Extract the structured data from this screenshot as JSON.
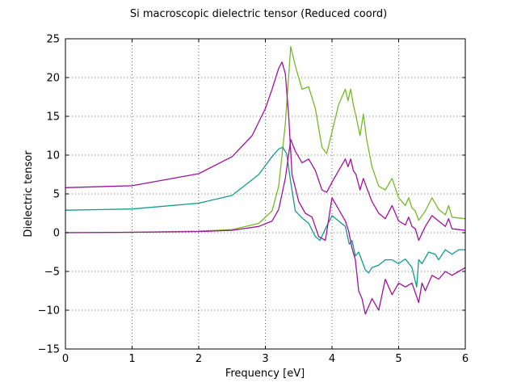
{
  "chart_data": {
    "type": "line",
    "title": "Si macroscopic dielectric tensor (Reduced coord)",
    "xlabel": "Frequency [eV]",
    "ylabel": "Dielectric tensor",
    "xlim": [
      0,
      6
    ],
    "ylim": [
      -15,
      25
    ],
    "xticks": [
      0,
      1,
      2,
      3,
      4,
      5,
      6
    ],
    "yticks": [
      -15,
      -10,
      -5,
      0,
      5,
      10,
      15,
      20,
      25
    ],
    "xtick_labels": [
      "0",
      "1",
      "2",
      "3",
      "4",
      "5",
      "6"
    ],
    "ytick_labels": [
      "−15",
      "−10",
      "−5",
      "0",
      "5",
      "10",
      "15",
      "20",
      "25"
    ],
    "grid": true,
    "legend": false,
    "series": [
      {
        "color": "#77b82a",
        "x": [
          0,
          1.0,
          2.0,
          2.5,
          2.9,
          3.1,
          3.2,
          3.3,
          3.38,
          3.45,
          3.55,
          3.65,
          3.75,
          3.85,
          3.92,
          4.0,
          4.1,
          4.2,
          4.24,
          4.28,
          4.32,
          4.36,
          4.42,
          4.47,
          4.52,
          4.6,
          4.7,
          4.8,
          4.9,
          5.0,
          5.1,
          5.15,
          5.2,
          5.25,
          5.3,
          5.4,
          5.5,
          5.6,
          5.7,
          5.75,
          5.8,
          5.9,
          6.0
        ],
        "y": [
          0,
          0.05,
          0.2,
          0.4,
          1.2,
          2.8,
          6.0,
          14.0,
          24.0,
          21.5,
          18.5,
          18.8,
          16.0,
          11.0,
          10.2,
          13.0,
          16.5,
          18.5,
          17.0,
          18.5,
          16.5,
          15.0,
          12.5,
          15.3,
          12.0,
          8.5,
          6.0,
          5.5,
          7.0,
          4.5,
          3.5,
          4.5,
          3.2,
          2.8,
          1.6,
          2.8,
          4.5,
          3.0,
          2.3,
          3.5,
          2.0,
          1.9,
          1.8
        ]
      },
      {
        "color": "#129b8d",
        "x": [
          0,
          1.0,
          2.0,
          2.5,
          2.9,
          3.1,
          3.2,
          3.26,
          3.32,
          3.38,
          3.45,
          3.55,
          3.65,
          3.75,
          3.82,
          3.9,
          4.0,
          4.1,
          4.2,
          4.26,
          4.3,
          4.35,
          4.4,
          4.5,
          4.55,
          4.6,
          4.7,
          4.8,
          4.9,
          5.0,
          5.1,
          5.2,
          5.27,
          5.3,
          5.35,
          5.45,
          5.55,
          5.6,
          5.7,
          5.8,
          5.9,
          6.0
        ],
        "y": [
          2.9,
          3.05,
          3.8,
          4.8,
          7.5,
          9.8,
          10.8,
          11.0,
          10.2,
          6.5,
          2.8,
          1.9,
          1.2,
          -0.5,
          -1.0,
          0.5,
          2.2,
          1.5,
          0.8,
          -1.5,
          -1.0,
          -3.0,
          -2.5,
          -4.8,
          -5.2,
          -4.5,
          -4.2,
          -3.5,
          -3.5,
          -4.0,
          -3.4,
          -4.5,
          -7.0,
          -3.5,
          -4.0,
          -2.5,
          -2.8,
          -3.5,
          -2.2,
          -2.8,
          -2.2,
          -2.2
        ]
      },
      {
        "color": "#a0119b",
        "x": [
          0,
          1.0,
          2.0,
          2.5,
          2.8,
          3.0,
          3.1,
          3.2,
          3.25,
          3.3,
          3.35,
          3.4,
          3.5,
          3.6,
          3.7,
          3.8,
          3.9,
          4.0,
          4.1,
          4.2,
          4.25,
          4.3,
          4.35,
          4.4,
          4.45,
          4.5,
          4.6,
          4.7,
          4.8,
          4.9,
          5.0,
          5.1,
          5.2,
          5.3,
          5.35,
          5.4,
          5.5,
          5.6,
          5.7,
          5.8,
          5.9,
          6.0
        ],
        "y": [
          5.8,
          6.05,
          7.6,
          9.8,
          12.5,
          16.0,
          18.5,
          21.2,
          22.0,
          20.5,
          15.0,
          7.5,
          4.0,
          2.5,
          2.0,
          -0.5,
          -1.0,
          4.5,
          3.0,
          1.5,
          0.2,
          -2.0,
          -3.5,
          -7.5,
          -8.5,
          -10.5,
          -8.5,
          -10.0,
          -6.0,
          -8.0,
          -6.5,
          -7.0,
          -6.5,
          -9.0,
          -6.5,
          -7.5,
          -5.5,
          -6.0,
          -5.0,
          -5.5,
          -5.0,
          -4.5
        ]
      },
      {
        "color": "#a0119b",
        "x": [
          0,
          1.0,
          2.0,
          2.5,
          2.9,
          3.1,
          3.2,
          3.3,
          3.38,
          3.45,
          3.55,
          3.65,
          3.75,
          3.85,
          3.92,
          4.0,
          4.1,
          4.2,
          4.24,
          4.28,
          4.32,
          4.36,
          4.42,
          4.47,
          4.52,
          4.6,
          4.7,
          4.8,
          4.9,
          5.0,
          5.1,
          5.15,
          5.2,
          5.25,
          5.3,
          5.4,
          5.5,
          5.6,
          5.7,
          5.75,
          5.8,
          5.9,
          6.0
        ],
        "y": [
          0,
          0.05,
          0.15,
          0.3,
          0.8,
          1.5,
          3.0,
          7.0,
          12.0,
          10.5,
          9.0,
          9.5,
          8.0,
          5.5,
          5.2,
          6.5,
          8.0,
          9.5,
          8.5,
          9.5,
          8.0,
          7.5,
          5.5,
          7.0,
          5.8,
          4.0,
          2.5,
          1.8,
          3.5,
          1.5,
          1.0,
          2.0,
          0.8,
          0.5,
          -1.0,
          0.8,
          2.2,
          1.5,
          0.8,
          1.8,
          0.5,
          0.4,
          0.3
        ]
      }
    ]
  }
}
